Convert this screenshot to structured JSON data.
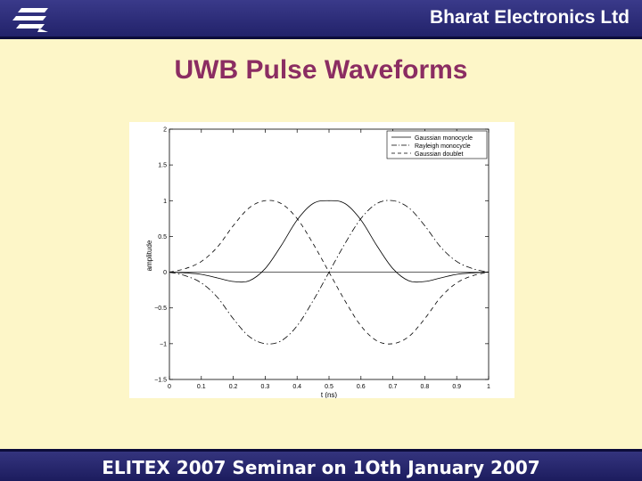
{
  "header": {
    "company": "Bharat Electronics Ltd",
    "logo_icon": "bel-logo-icon"
  },
  "slide": {
    "title": "UWB Pulse Waveforms"
  },
  "footer": {
    "text": "ELITEX 2007 Seminar on 1Oth January 2007"
  },
  "colors": {
    "background": "#fdf6c8",
    "bar": "#2a2a72",
    "title": "#8b2d62"
  },
  "chart_data": {
    "type": "line",
    "title": "",
    "xlabel": "t (ns)",
    "ylabel": "amplitude",
    "xlim": [
      0,
      1
    ],
    "ylim": [
      -1.5,
      2
    ],
    "xticks": [
      "0",
      "0.1",
      "0.2",
      "0.3",
      "0.4",
      "0.5",
      "0.6",
      "0.7",
      "0.8",
      "0.9",
      "1"
    ],
    "yticks": [
      "−1.5",
      "−1",
      "−0.5",
      "0",
      "0.5",
      "1",
      "1.5",
      "2"
    ],
    "grid": false,
    "legend_position": "top-right",
    "x": [
      0,
      0.05,
      0.1,
      0.15,
      0.2,
      0.25,
      0.3,
      0.35,
      0.4,
      0.45,
      0.5,
      0.55,
      0.6,
      0.65,
      0.7,
      0.75,
      0.8,
      0.85,
      0.9,
      0.95,
      1
    ],
    "series": [
      {
        "name": "Gaussian monocycle",
        "style": "solid",
        "values": [
          0,
          -0.01,
          -0.03,
          -0.08,
          -0.13,
          -0.12,
          0.05,
          0.37,
          0.73,
          0.96,
          1.0,
          0.96,
          0.73,
          0.37,
          0.05,
          -0.12,
          -0.13,
          -0.08,
          -0.03,
          -0.01,
          0
        ]
      },
      {
        "name": "Rayleigh monocycle",
        "style": "dashdot",
        "values": [
          0,
          -0.05,
          -0.15,
          -0.35,
          -0.65,
          -0.9,
          -1.0,
          -0.96,
          -0.75,
          -0.4,
          0.0,
          0.4,
          0.75,
          0.96,
          1.0,
          0.9,
          0.65,
          0.35,
          0.15,
          0.05,
          0
        ]
      },
      {
        "name": "Gaussian doublet",
        "style": "dashed",
        "values": [
          0,
          0.05,
          0.15,
          0.35,
          0.65,
          0.9,
          1.0,
          0.96,
          0.75,
          0.4,
          0.0,
          -0.4,
          -0.75,
          -0.96,
          -1.0,
          -0.9,
          -0.65,
          -0.35,
          -0.15,
          -0.05,
          0
        ]
      }
    ]
  }
}
